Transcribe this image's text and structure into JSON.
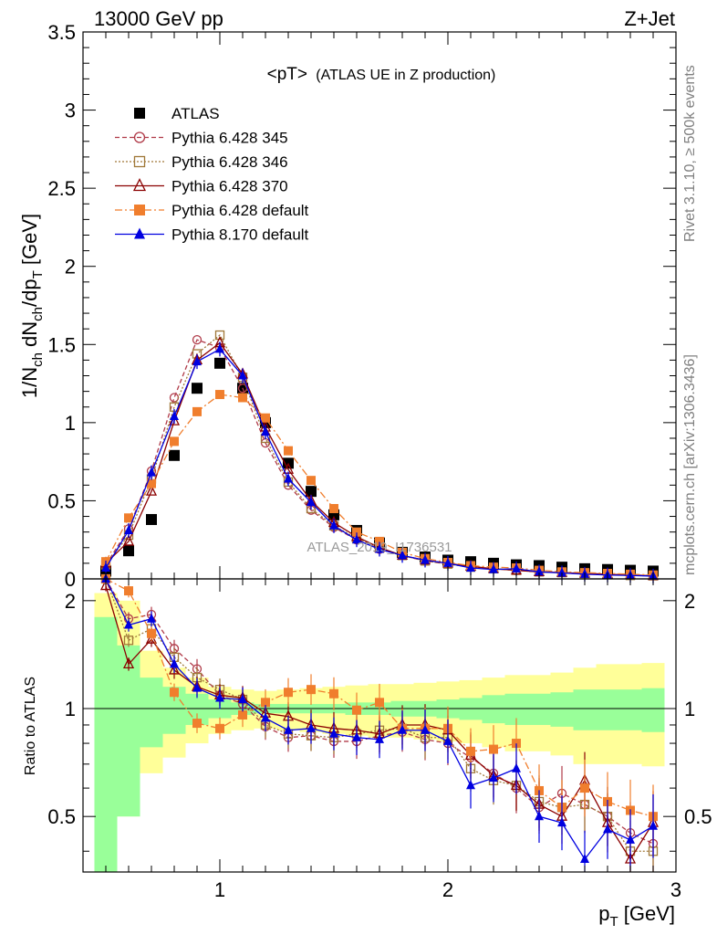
{
  "header": {
    "left": "13000 GeV pp",
    "right": "Z+Jet"
  },
  "side": {
    "top": "Rivet 3.1.10, ≥ 500k events",
    "bottom": "mcplots.cern.ch [arXiv:1306.3436]"
  },
  "chart_data": [
    {
      "type": "line",
      "title": "<pT> (ATLAS UE in Z production)",
      "title_main": "<pT>",
      "title_sub": "(ATLAS UE in Z production)",
      "ylabel": "1/N_ch dN_ch/dp_T [GeV]",
      "watermark": "ATLAS_2019_I1736531",
      "xlim": [
        0.4,
        3.0
      ],
      "ylim": [
        0,
        3.5
      ],
      "y_ticks": [
        "0",
        "0.5",
        "1",
        "1.5",
        "2",
        "2.5",
        "3",
        "3.5"
      ],
      "x": [
        0.5,
        0.6,
        0.7,
        0.8,
        0.9,
        1.0,
        1.1,
        1.2,
        1.3,
        1.4,
        1.5,
        1.6,
        1.7,
        1.8,
        1.9,
        2.0,
        2.1,
        2.2,
        2.3,
        2.4,
        2.5,
        2.6,
        2.7,
        2.8,
        2.9
      ],
      "legend_position": "top-left",
      "series": [
        {
          "name": "ATLAS",
          "style": "data",
          "color": "#000000",
          "values": [
            0.05,
            0.18,
            0.38,
            0.79,
            1.22,
            1.38,
            1.22,
            1.0,
            0.74,
            0.56,
            0.41,
            0.31,
            0.23,
            0.17,
            0.14,
            0.12,
            0.11,
            0.1,
            0.09,
            0.085,
            0.075,
            0.065,
            0.06,
            0.055,
            0.05
          ]
        },
        {
          "name": "Pythia 6.428 345",
          "style": "dash-circle",
          "color": "#b03a48",
          "values": [
            0.09,
            0.32,
            0.69,
            1.16,
            1.53,
            1.48,
            1.22,
            0.87,
            0.6,
            0.44,
            0.33,
            0.25,
            0.19,
            0.15,
            0.115,
            0.095,
            0.08,
            0.065,
            0.055,
            0.045,
            0.04,
            0.035,
            0.03,
            0.025,
            0.02
          ]
        },
        {
          "name": "Pythia 6.428 346",
          "style": "dot-square",
          "color": "#a07838",
          "values": [
            0.09,
            0.28,
            0.64,
            1.1,
            1.44,
            1.56,
            1.29,
            0.9,
            0.62,
            0.45,
            0.34,
            0.26,
            0.2,
            0.15,
            0.115,
            0.095,
            0.075,
            0.065,
            0.055,
            0.045,
            0.04,
            0.035,
            0.028,
            0.022,
            0.02
          ]
        },
        {
          "name": "Pythia 6.428 370",
          "style": "solid-triangle",
          "color": "#8b0000",
          "values": [
            0.1,
            0.24,
            0.56,
            1.01,
            1.4,
            1.51,
            1.31,
            0.97,
            0.7,
            0.5,
            0.36,
            0.27,
            0.2,
            0.15,
            0.12,
            0.1,
            0.08,
            0.065,
            0.055,
            0.045,
            0.04,
            0.035,
            0.03,
            0.025,
            0.02
          ]
        },
        {
          "name": "Pythia 6.428 default",
          "style": "dashdot-filled-square",
          "color": "#f07e2d",
          "values": [
            0.11,
            0.39,
            0.61,
            0.88,
            1.07,
            1.18,
            1.16,
            1.03,
            0.82,
            0.63,
            0.45,
            0.3,
            0.24,
            0.17,
            0.13,
            0.105,
            0.085,
            0.075,
            0.07,
            0.055,
            0.045,
            0.04,
            0.035,
            0.03,
            0.025
          ]
        },
        {
          "name": "Pythia 8.170 default",
          "style": "solid-filled-triangle",
          "color": "#0000e0",
          "values": [
            0.07,
            0.31,
            0.68,
            1.04,
            1.39,
            1.47,
            1.3,
            0.94,
            0.64,
            0.49,
            0.34,
            0.25,
            0.19,
            0.15,
            0.12,
            0.1,
            0.07,
            0.06,
            0.065,
            0.045,
            0.038,
            0.03,
            0.025,
            0.022,
            0.018
          ]
        }
      ]
    },
    {
      "type": "line",
      "title": "",
      "ylabel": "Ratio to ATLAS",
      "xlabel": "p_T [GeV]",
      "xlim": [
        0.4,
        3.0
      ],
      "ylim": [
        0.35,
        2.3
      ],
      "x_ticks": [
        "1",
        "2",
        "3"
      ],
      "y_ticks": [
        "0.5",
        "1",
        "2"
      ],
      "x": [
        0.5,
        0.6,
        0.7,
        0.8,
        0.9,
        1.0,
        1.1,
        1.2,
        1.3,
        1.4,
        1.5,
        1.6,
        1.7,
        1.8,
        1.9,
        2.0,
        2.1,
        2.2,
        2.3,
        2.4,
        2.5,
        2.6,
        2.7,
        2.8,
        2.9
      ],
      "bands": {
        "bin_edges": [
          0.45,
          0.55,
          0.65,
          0.75,
          0.85,
          0.95,
          1.05,
          1.15,
          1.25,
          1.35,
          1.45,
          1.55,
          1.65,
          1.75,
          1.85,
          1.95,
          2.05,
          2.15,
          2.25,
          2.35,
          2.45,
          2.55,
          2.65,
          2.75,
          2.85,
          2.95
        ],
        "stat_color": "#99ff99",
        "total_color": "#ffff99",
        "stat_low": [
          0.2,
          0.5,
          0.78,
          0.85,
          0.9,
          0.94,
          0.96,
          0.97,
          0.97,
          0.97,
          0.97,
          0.96,
          0.96,
          0.95,
          0.95,
          0.94,
          0.93,
          0.91,
          0.9,
          0.9,
          0.89,
          0.87,
          0.87,
          0.87,
          0.86
        ],
        "stat_high": [
          1.8,
          1.5,
          1.22,
          1.15,
          1.1,
          1.06,
          1.04,
          1.03,
          1.03,
          1.03,
          1.03,
          1.04,
          1.04,
          1.05,
          1.05,
          1.06,
          1.07,
          1.09,
          1.1,
          1.1,
          1.11,
          1.13,
          1.13,
          1.13,
          1.14
        ],
        "total_low": [
          0.2,
          0.5,
          0.66,
          0.73,
          0.8,
          0.85,
          0.87,
          0.88,
          0.87,
          0.86,
          0.85,
          0.84,
          0.83,
          0.83,
          0.82,
          0.81,
          0.8,
          0.78,
          0.76,
          0.76,
          0.74,
          0.7,
          0.7,
          0.7,
          0.69
        ],
        "total_high": [
          2.1,
          2.0,
          1.45,
          1.3,
          1.22,
          1.15,
          1.13,
          1.12,
          1.13,
          1.14,
          1.15,
          1.16,
          1.17,
          1.17,
          1.18,
          1.19,
          1.2,
          1.22,
          1.24,
          1.24,
          1.26,
          1.3,
          1.33,
          1.33,
          1.34
        ],
        "y_at_edge_0.45": 0.2
      },
      "series": [
        {
          "name": "Pythia 6.428 345",
          "color": "#b03a48",
          "values": [
            2.3,
            1.78,
            1.83,
            1.47,
            1.29,
            1.09,
            1.03,
            0.89,
            0.83,
            0.84,
            0.81,
            0.81,
            0.84,
            0.86,
            0.82,
            0.8,
            0.73,
            0.66,
            0.6,
            0.53,
            0.58,
            0.54,
            0.5,
            0.45,
            0.42
          ]
        },
        {
          "name": "Pythia 6.428 346",
          "color": "#a07838",
          "values": [
            2.3,
            1.55,
            1.67,
            1.39,
            1.22,
            1.13,
            1.06,
            0.9,
            0.85,
            0.84,
            0.83,
            0.85,
            0.87,
            0.88,
            0.83,
            0.83,
            0.68,
            0.63,
            0.61,
            0.55,
            0.53,
            0.54,
            0.5,
            0.4,
            0.4
          ]
        },
        {
          "name": "Pythia 6.428 370",
          "color": "#8b0000",
          "values": [
            2.2,
            1.33,
            1.56,
            1.28,
            1.15,
            1.09,
            1.07,
            0.97,
            0.95,
            0.9,
            0.88,
            0.87,
            0.85,
            0.9,
            0.9,
            0.87,
            0.74,
            0.65,
            0.61,
            0.54,
            0.5,
            0.63,
            0.48,
            0.38,
            0.48
          ]
        },
        {
          "name": "Pythia 6.428 default",
          "color": "#f07e2d",
          "values": [
            2.3,
            2.13,
            1.62,
            1.11,
            0.91,
            0.88,
            0.96,
            1.04,
            1.11,
            1.13,
            1.1,
            0.99,
            1.04,
            0.88,
            0.88,
            0.88,
            0.76,
            0.77,
            0.8,
            0.59,
            0.53,
            0.6,
            0.55,
            0.52,
            0.5
          ]
        },
        {
          "name": "Pythia 8.170 default",
          "color": "#0000e0",
          "values": [
            2.3,
            1.71,
            1.78,
            1.33,
            1.14,
            1.07,
            1.06,
            0.94,
            0.87,
            0.88,
            0.85,
            0.83,
            0.82,
            0.87,
            0.87,
            0.81,
            0.61,
            0.64,
            0.68,
            0.5,
            0.48,
            0.38,
            0.46,
            0.43,
            0.47
          ]
        }
      ]
    }
  ]
}
